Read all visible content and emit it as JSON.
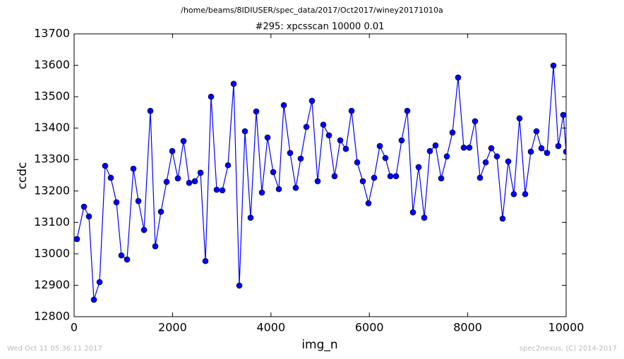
{
  "chart_data": {
    "type": "line",
    "header": "/home/beams/8IDIUSER/spec_data/2017/Oct2017/winey20171010a",
    "title": "#295: xpcsscan 10000 0.01",
    "xlabel": "img_n",
    "ylabel": "ccdc",
    "footer_left": "Wed Oct 11 05:36:11 2017",
    "footer_right": "spec2nexus, (C) 2014-2017",
    "x": [
      57,
      201,
      301,
      402,
      517,
      631,
      746,
      861,
      961,
      1076,
      1205,
      1306,
      1421,
      1550,
      1650,
      1765,
      1880,
      1995,
      2109,
      2224,
      2339,
      2454,
      2569,
      2669,
      2784,
      2898,
      3013,
      3128,
      3243,
      3358,
      3472,
      3587,
      3702,
      3817,
      3932,
      4046,
      4161,
      4262,
      4390,
      4505,
      4606,
      4721,
      4835,
      4950,
      5065,
      5180,
      5294,
      5409,
      5524,
      5639,
      5754,
      5868,
      5983,
      6098,
      6213,
      6327,
      6428,
      6543,
      6657,
      6772,
      6887,
      7002,
      7117,
      7231,
      7346,
      7461,
      7576,
      7690,
      7805,
      7920,
      8034,
      8149,
      8250,
      8365,
      8479,
      8594,
      8709,
      8824,
      8938,
      9053,
      9168,
      9283,
      9397,
      9498,
      9613,
      9742,
      9842,
      9943,
      10000
    ],
    "series": [
      {
        "name": "ccdc",
        "color": "#0000ff",
        "values": [
          13047,
          13150,
          13119,
          12854,
          12910,
          13280,
          13242,
          13164,
          12995,
          12982,
          13271,
          13168,
          13076,
          13455,
          13024,
          13134,
          13229,
          13327,
          13240,
          13359,
          13226,
          13231,
          13258,
          12977,
          13500,
          13204,
          13202,
          13282,
          13541,
          12899,
          13390,
          13115,
          13453,
          13195,
          13370,
          13260,
          13206,
          13473,
          13321,
          13210,
          13303,
          13404,
          13487,
          13231,
          13411,
          13377,
          13247,
          13361,
          13334,
          13455,
          13291,
          13231,
          13161,
          13242,
          13343,
          13305,
          13247,
          13247,
          13361,
          13455,
          13132,
          13276,
          13115,
          13327,
          13345,
          13240,
          13310,
          13386,
          13561,
          13338,
          13338,
          13422,
          13242,
          13291,
          13336,
          13310,
          13112,
          13294,
          13190,
          13431,
          13190,
          13325,
          13390,
          13336,
          13321,
          13599,
          13343,
          13442,
          13325
        ]
      }
    ],
    "xlim": [
      0,
      10000
    ],
    "xticks": [
      0,
      2000,
      4000,
      6000,
      8000,
      10000
    ],
    "ylim": [
      12800,
      13700
    ],
    "yticks": [
      12800,
      12900,
      13000,
      13100,
      13200,
      13300,
      13400,
      13500,
      13600,
      13700
    ],
    "grid": false
  }
}
